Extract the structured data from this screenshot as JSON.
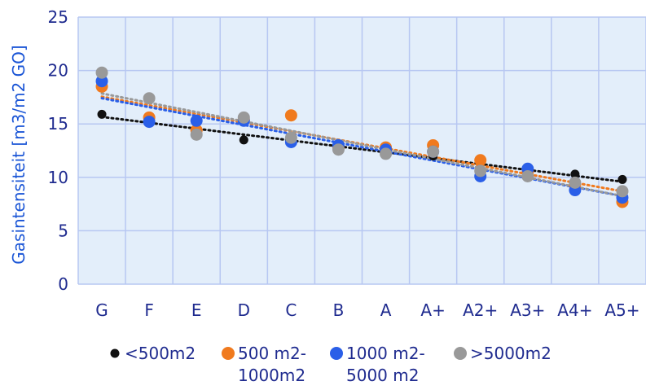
{
  "chart_data": {
    "type": "scatter",
    "title": "",
    "xlabel": "",
    "ylabel": "Gasintensiteit [m3/m2 GO]",
    "categories": [
      "G",
      "F",
      "E",
      "D",
      "C",
      "B",
      "A",
      "A+",
      "A2+",
      "A3+",
      "A4+",
      "A5+"
    ],
    "ylim": [
      0,
      25
    ],
    "yticks": [
      0,
      5,
      10,
      15,
      20,
      25
    ],
    "grid": true,
    "legend_position": "bottom",
    "trendlines": "linear",
    "series": [
      {
        "name": "<500m2",
        "color": "#111111",
        "values": [
          15.9,
          15.5,
          14.5,
          13.5,
          13.3,
          12.8,
          12.3,
          12.0,
          10.8,
          10.8,
          10.3,
          9.8
        ]
      },
      {
        "name": "500 m2-\n1000m2",
        "color": "#f07a1e",
        "values": [
          18.5,
          15.6,
          14.4,
          15.4,
          15.8,
          12.8,
          12.8,
          13.0,
          11.6,
          10.5,
          9.3,
          7.7
        ]
      },
      {
        "name": "1000 m2-\n5000 m2",
        "color": "#2a5fe8",
        "values": [
          19.0,
          15.2,
          15.3,
          15.3,
          13.3,
          13.0,
          12.6,
          12.4,
          10.1,
          10.8,
          8.8,
          8.1
        ]
      },
      {
        "name": ">5000m2",
        "color": "#999999",
        "values": [
          19.8,
          17.4,
          14.0,
          15.6,
          13.7,
          12.6,
          12.2,
          12.4,
          10.6,
          10.1,
          9.5,
          8.7
        ]
      }
    ]
  }
}
